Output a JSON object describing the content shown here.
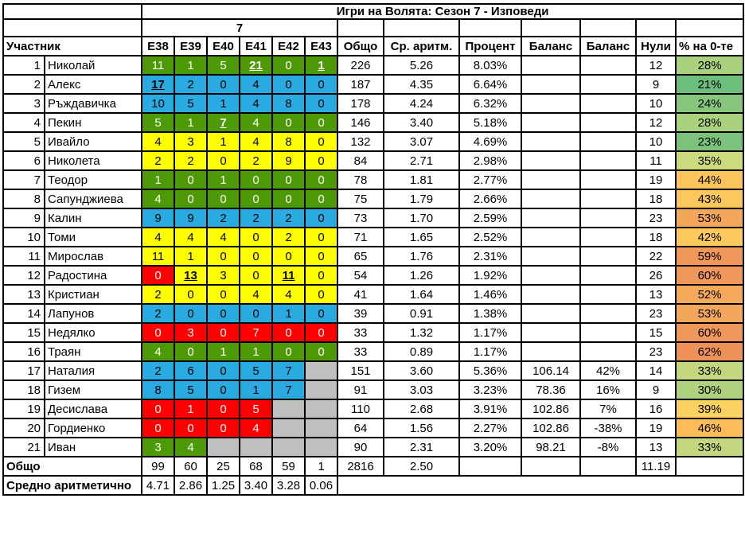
{
  "title": "Игри на Волята: Сезон 7 - Изповеди",
  "season_label": "7",
  "columns": {
    "participant": "Участник",
    "episode_headers": [
      "E38",
      "E39",
      "E40",
      "E41",
      "E42",
      "E43"
    ],
    "stat_headers": [
      "Общо",
      "Ср. аритм.",
      "Процент",
      "Баланс",
      "Баланс",
      "Нули",
      "% на 0-те"
    ]
  },
  "colors": {
    "green": "#4E9A06",
    "blue": "#29ABE2",
    "yellow": "#FFFF00",
    "red": "#FF0000",
    "gray": "#BFBFBF",
    "text_on_dark": "#FFFFFF",
    "text_on_light": "#000000",
    "border": "#000000"
  },
  "rows": [
    {
      "rank": "1",
      "name": "Николай",
      "eps": [
        {
          "v": "11",
          "c": "g"
        },
        {
          "v": "1",
          "c": "g"
        },
        {
          "v": "5",
          "c": "g"
        },
        {
          "v": "21",
          "c": "g",
          "u": 1
        },
        {
          "v": "0",
          "c": "g"
        },
        {
          "v": "1",
          "c": "g",
          "u": 1
        }
      ],
      "total": "226",
      "avg": "5.26",
      "pct": "8.03%",
      "bal1": "",
      "bal2": "",
      "zeros": "12",
      "zpct": "28%",
      "zcolor": "#A9D17E"
    },
    {
      "rank": "2",
      "name": "Алекс",
      "eps": [
        {
          "v": "17",
          "c": "b",
          "u": 1
        },
        {
          "v": "2",
          "c": "b"
        },
        {
          "v": "0",
          "c": "b"
        },
        {
          "v": "4",
          "c": "b"
        },
        {
          "v": "0",
          "c": "b"
        },
        {
          "v": "0",
          "c": "b"
        }
      ],
      "total": "187",
      "avg": "4.35",
      "pct": "6.64%",
      "bal1": "",
      "bal2": "",
      "zeros": "9",
      "zpct": "21%",
      "zcolor": "#6BBE7C"
    },
    {
      "rank": "3",
      "name": "Ръждавичка",
      "eps": [
        {
          "v": "10",
          "c": "b"
        },
        {
          "v": "5",
          "c": "b"
        },
        {
          "v": "1",
          "c": "b"
        },
        {
          "v": "4",
          "c": "b"
        },
        {
          "v": "8",
          "c": "b"
        },
        {
          "v": "0",
          "c": "b"
        }
      ],
      "total": "178",
      "avg": "4.24",
      "pct": "6.32%",
      "bal1": "",
      "bal2": "",
      "zeros": "10",
      "zpct": "24%",
      "zcolor": "#86C67D"
    },
    {
      "rank": "4",
      "name": "Пекин",
      "eps": [
        {
          "v": "5",
          "c": "g"
        },
        {
          "v": "1",
          "c": "g"
        },
        {
          "v": "7",
          "c": "g",
          "u": 1
        },
        {
          "v": "4",
          "c": "g"
        },
        {
          "v": "0",
          "c": "g"
        },
        {
          "v": "0",
          "c": "g"
        }
      ],
      "total": "146",
      "avg": "3.40",
      "pct": "5.18%",
      "bal1": "",
      "bal2": "",
      "zeros": "12",
      "zpct": "28%",
      "zcolor": "#A9D17E"
    },
    {
      "rank": "5",
      "name": "Ивайло",
      "eps": [
        {
          "v": "4",
          "c": "y"
        },
        {
          "v": "3",
          "c": "y"
        },
        {
          "v": "1",
          "c": "y"
        },
        {
          "v": "4",
          "c": "y"
        },
        {
          "v": "8",
          "c": "y"
        },
        {
          "v": "0",
          "c": "y"
        }
      ],
      "total": "132",
      "avg": "3.07",
      "pct": "4.69%",
      "bal1": "",
      "bal2": "",
      "zeros": "10",
      "zpct": "23%",
      "zcolor": "#7CC27D"
    },
    {
      "rank": "6",
      "name": "Николета",
      "eps": [
        {
          "v": "2",
          "c": "y"
        },
        {
          "v": "2",
          "c": "y"
        },
        {
          "v": "0",
          "c": "y"
        },
        {
          "v": "2",
          "c": "y"
        },
        {
          "v": "9",
          "c": "y"
        },
        {
          "v": "0",
          "c": "y"
        }
      ],
      "total": "84",
      "avg": "2.71",
      "pct": "2.98%",
      "bal1": "",
      "bal2": "",
      "zeros": "11",
      "zpct": "35%",
      "zcolor": "#CCD97D"
    },
    {
      "rank": "7",
      "name": "Теодор",
      "eps": [
        {
          "v": "1",
          "c": "g"
        },
        {
          "v": "0",
          "c": "g"
        },
        {
          "v": "1",
          "c": "g"
        },
        {
          "v": "0",
          "c": "g"
        },
        {
          "v": "0",
          "c": "g"
        },
        {
          "v": "0",
          "c": "g"
        }
      ],
      "total": "78",
      "avg": "1.81",
      "pct": "2.77%",
      "bal1": "",
      "bal2": "",
      "zeros": "19",
      "zpct": "44%",
      "zcolor": "#FCC55C"
    },
    {
      "rank": "8",
      "name": "Сапунджиева",
      "eps": [
        {
          "v": "4",
          "c": "g"
        },
        {
          "v": "0",
          "c": "g"
        },
        {
          "v": "0",
          "c": "g"
        },
        {
          "v": "0",
          "c": "g"
        },
        {
          "v": "0",
          "c": "g"
        },
        {
          "v": "0",
          "c": "g"
        }
      ],
      "total": "75",
      "avg": "1.79",
      "pct": "2.66%",
      "bal1": "",
      "bal2": "",
      "zeros": "18",
      "zpct": "43%",
      "zcolor": "#FCC75D"
    },
    {
      "rank": "9",
      "name": "Калин",
      "eps": [
        {
          "v": "9",
          "c": "b"
        },
        {
          "v": "9",
          "c": "b"
        },
        {
          "v": "2",
          "c": "b"
        },
        {
          "v": "2",
          "c": "b"
        },
        {
          "v": "2",
          "c": "b"
        },
        {
          "v": "0",
          "c": "b"
        }
      ],
      "total": "73",
      "avg": "1.70",
      "pct": "2.59%",
      "bal1": "",
      "bal2": "",
      "zeros": "23",
      "zpct": "53%",
      "zcolor": "#F3A75A"
    },
    {
      "rank": "10",
      "name": "Томи",
      "eps": [
        {
          "v": "4",
          "c": "y"
        },
        {
          "v": "4",
          "c": "y"
        },
        {
          "v": "4",
          "c": "y"
        },
        {
          "v": "0",
          "c": "y"
        },
        {
          "v": "2",
          "c": "y"
        },
        {
          "v": "0",
          "c": "y"
        }
      ],
      "total": "71",
      "avg": "1.65",
      "pct": "2.52%",
      "bal1": "",
      "bal2": "",
      "zeros": "18",
      "zpct": "42%",
      "zcolor": "#FCC95D"
    },
    {
      "rank": "11",
      "name": "Мирослав",
      "eps": [
        {
          "v": "11",
          "c": "y"
        },
        {
          "v": "1",
          "c": "y"
        },
        {
          "v": "0",
          "c": "y"
        },
        {
          "v": "0",
          "c": "y"
        },
        {
          "v": "0",
          "c": "y"
        },
        {
          "v": "0",
          "c": "y"
        }
      ],
      "total": "65",
      "avg": "1.76",
      "pct": "2.31%",
      "bal1": "",
      "bal2": "",
      "zeros": "22",
      "zpct": "59%",
      "zcolor": "#F0985A"
    },
    {
      "rank": "12",
      "name": "Радостина",
      "eps": [
        {
          "v": "0",
          "c": "r"
        },
        {
          "v": "13",
          "c": "y",
          "u": 1
        },
        {
          "v": "3",
          "c": "y"
        },
        {
          "v": "0",
          "c": "y"
        },
        {
          "v": "11",
          "c": "y",
          "u": 1
        },
        {
          "v": "0",
          "c": "y"
        }
      ],
      "total": "54",
      "avg": "1.26",
      "pct": "1.92%",
      "bal1": "",
      "bal2": "",
      "zeros": "26",
      "zpct": "60%",
      "zcolor": "#EF965A"
    },
    {
      "rank": "13",
      "name": "Кристиан",
      "eps": [
        {
          "v": "2",
          "c": "y"
        },
        {
          "v": "0",
          "c": "y"
        },
        {
          "v": "0",
          "c": "y"
        },
        {
          "v": "4",
          "c": "y"
        },
        {
          "v": "4",
          "c": "y"
        },
        {
          "v": "0",
          "c": "y"
        }
      ],
      "total": "41",
      "avg": "1.64",
      "pct": "1.46%",
      "bal1": "",
      "bal2": "",
      "zeros": "13",
      "zpct": "52%",
      "zcolor": "#F4A95B"
    },
    {
      "rank": "14",
      "name": "Лапунов",
      "eps": [
        {
          "v": "2",
          "c": "b"
        },
        {
          "v": "0",
          "c": "b"
        },
        {
          "v": "0",
          "c": "b"
        },
        {
          "v": "0",
          "c": "b"
        },
        {
          "v": "1",
          "c": "b"
        },
        {
          "v": "0",
          "c": "b"
        }
      ],
      "total": "39",
      "avg": "0.91",
      "pct": "1.38%",
      "bal1": "",
      "bal2": "",
      "zeros": "23",
      "zpct": "53%",
      "zcolor": "#F3A75A"
    },
    {
      "rank": "15",
      "name": "Недялко",
      "eps": [
        {
          "v": "0",
          "c": "r"
        },
        {
          "v": "3",
          "c": "r"
        },
        {
          "v": "0",
          "c": "r"
        },
        {
          "v": "7",
          "c": "r"
        },
        {
          "v": "0",
          "c": "r"
        },
        {
          "v": "0",
          "c": "r"
        }
      ],
      "total": "33",
      "avg": "1.32",
      "pct": "1.17%",
      "bal1": "",
      "bal2": "",
      "zeros": "15",
      "zpct": "60%",
      "zcolor": "#EF965A"
    },
    {
      "rank": "16",
      "name": "Траян",
      "eps": [
        {
          "v": "4",
          "c": "g"
        },
        {
          "v": "0",
          "c": "g"
        },
        {
          "v": "1",
          "c": "g"
        },
        {
          "v": "1",
          "c": "g"
        },
        {
          "v": "0",
          "c": "g"
        },
        {
          "v": "0",
          "c": "g"
        }
      ],
      "total": "33",
      "avg": "0.89",
      "pct": "1.17%",
      "bal1": "",
      "bal2": "",
      "zeros": "23",
      "zpct": "62%",
      "zcolor": "#EE9158"
    },
    {
      "rank": "17",
      "name": "Наталия",
      "eps": [
        {
          "v": "2",
          "c": "b"
        },
        {
          "v": "6",
          "c": "b"
        },
        {
          "v": "0",
          "c": "b"
        },
        {
          "v": "5",
          "c": "b"
        },
        {
          "v": "7",
          "c": "b"
        },
        {
          "v": "",
          "c": "x"
        }
      ],
      "total": "151",
      "avg": "3.60",
      "pct": "5.36%",
      "bal1": "106.14",
      "bal2": "42%",
      "zeros": "14",
      "zpct": "33%",
      "zcolor": "#C2D77E"
    },
    {
      "rank": "18",
      "name": "Гизем",
      "eps": [
        {
          "v": "8",
          "c": "b"
        },
        {
          "v": "5",
          "c": "b"
        },
        {
          "v": "0",
          "c": "b"
        },
        {
          "v": "1",
          "c": "b"
        },
        {
          "v": "7",
          "c": "b"
        },
        {
          "v": "",
          "c": "x"
        }
      ],
      "total": "91",
      "avg": "3.03",
      "pct": "3.23%",
      "bal1": "78.36",
      "bal2": "16%",
      "zeros": "9",
      "zpct": "30%",
      "zcolor": "#AFD27F"
    },
    {
      "rank": "19",
      "name": "Десислава",
      "eps": [
        {
          "v": "0",
          "c": "r"
        },
        {
          "v": "1",
          "c": "r"
        },
        {
          "v": "0",
          "c": "r"
        },
        {
          "v": "5",
          "c": "r"
        },
        {
          "v": "",
          "c": "x"
        },
        {
          "v": "",
          "c": "x"
        }
      ],
      "total": "110",
      "avg": "2.68",
      "pct": "3.91%",
      "bal1": "102.86",
      "bal2": "7%",
      "zeros": "16",
      "zpct": "39%",
      "zcolor": "#FBD262"
    },
    {
      "rank": "20",
      "name": "Гордиенко",
      "eps": [
        {
          "v": "0",
          "c": "r"
        },
        {
          "v": "0",
          "c": "r"
        },
        {
          "v": "0",
          "c": "r"
        },
        {
          "v": "4",
          "c": "r"
        },
        {
          "v": "",
          "c": "x"
        },
        {
          "v": "",
          "c": "x"
        }
      ],
      "total": "64",
      "avg": "1.56",
      "pct": "2.27%",
      "bal1": "102.86",
      "bal2": "-38%",
      "zeros": "19",
      "zpct": "46%",
      "zcolor": "#FABD58"
    },
    {
      "rank": "21",
      "name": "Иван",
      "eps": [
        {
          "v": "3",
          "c": "g"
        },
        {
          "v": "4",
          "c": "g"
        },
        {
          "v": "",
          "c": "x"
        },
        {
          "v": "",
          "c": "x"
        },
        {
          "v": "",
          "c": "x"
        },
        {
          "v": "",
          "c": "x"
        }
      ],
      "total": "90",
      "avg": "2.31",
      "pct": "3.20%",
      "bal1": "98.21",
      "bal2": "-8%",
      "zeros": "13",
      "zpct": "33%",
      "zcolor": "#C2D77E"
    }
  ],
  "totals": {
    "label": "Общо",
    "episodes": [
      "99",
      "60",
      "25",
      "68",
      "59",
      "1"
    ],
    "total": "2816",
    "avg": "2.50",
    "pct": "",
    "bal1": "",
    "bal2": "",
    "zeros": "11.19",
    "zpct": ""
  },
  "means": {
    "label": "Средно аритметично",
    "episodes": [
      "4.71",
      "2.86",
      "1.25",
      "3.40",
      "3.28",
      "0.06"
    ]
  }
}
